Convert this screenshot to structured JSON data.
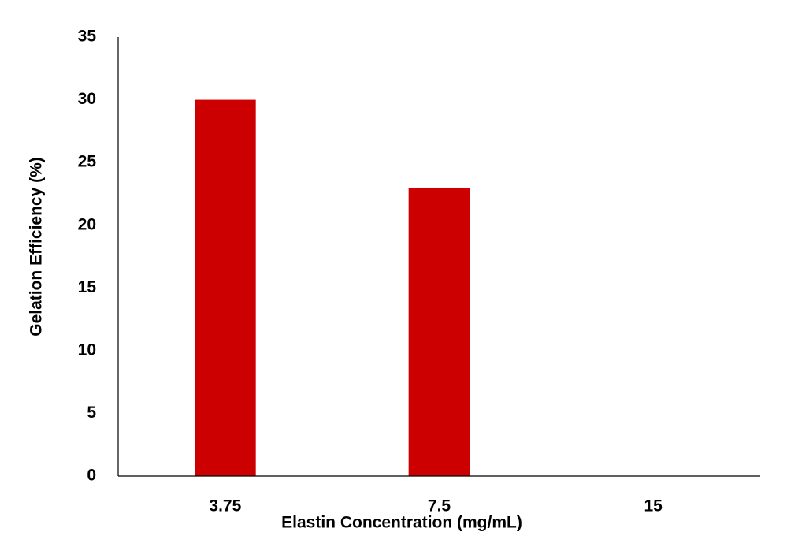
{
  "chart_data": {
    "type": "bar",
    "x_label": "Elastin Concentration (mg/mL)",
    "y_label": "Gelation Efficiency (%)",
    "categories": [
      "3.75",
      "7.5",
      "15"
    ],
    "values": [
      30,
      23,
      0
    ],
    "color": "#cc0000",
    "ylim": [
      0,
      35
    ],
    "yticks": [
      0,
      5,
      10,
      15,
      20,
      25,
      30,
      35
    ],
    "grid": false
  }
}
